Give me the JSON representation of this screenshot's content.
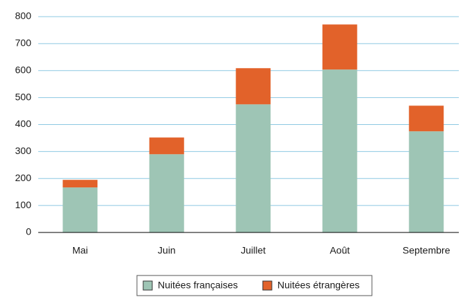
{
  "chart_data": {
    "type": "stacked_bar",
    "categories": [
      "Mai",
      "Juin",
      "Juillet",
      "Août",
      "Septembre"
    ],
    "series": [
      {
        "name": "Nuitées françaises",
        "color": "#9ec5b5",
        "values": [
          167,
          290,
          475,
          604,
          375
        ]
      },
      {
        "name": "Nuitées étrangères",
        "color": "#e2622a",
        "values": [
          28,
          62,
          134,
          167,
          95
        ]
      }
    ],
    "ylim": [
      0,
      800
    ],
    "yticks": [
      0,
      100,
      200,
      300,
      400,
      500,
      600,
      700,
      800
    ],
    "grid": true
  }
}
